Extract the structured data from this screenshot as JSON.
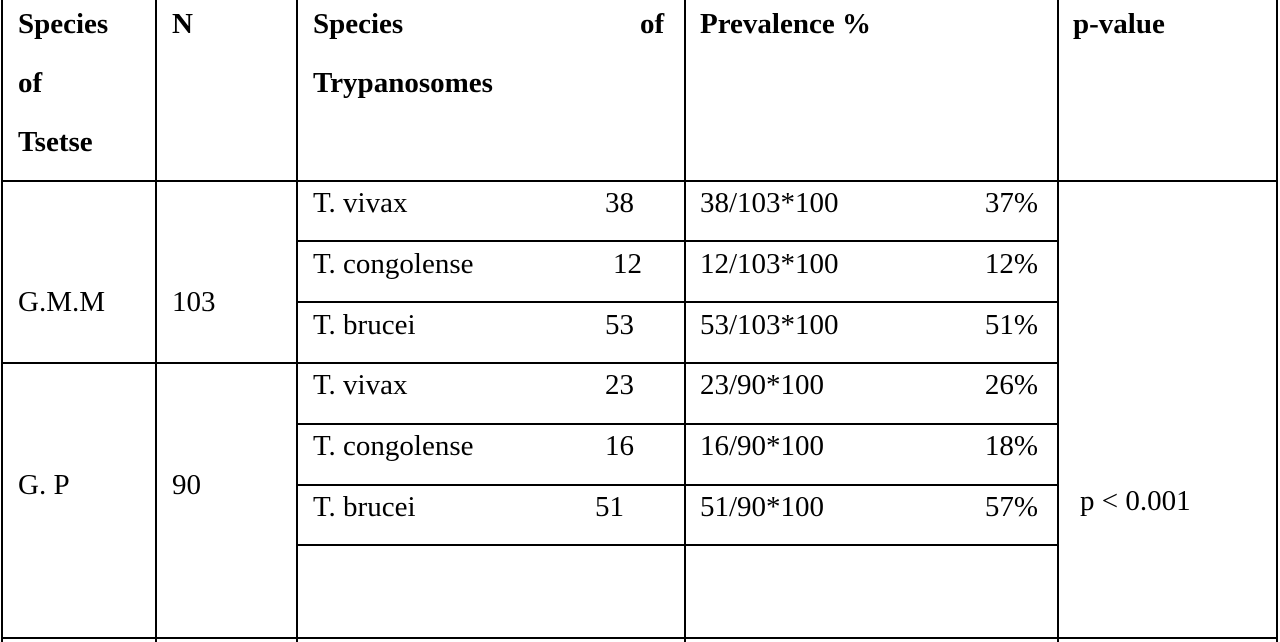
{
  "headers": {
    "tsetse": [
      "Species",
      "of",
      "Tsetse"
    ],
    "n": "N",
    "trypanosomes_word1": "Species",
    "trypanosomes_word2": "of",
    "trypanosomes_line2": "Trypanosomes",
    "prevalence": "Prevalence %",
    "pvalue": "p-value"
  },
  "groups": [
    {
      "tsetse": "G.M.M",
      "n": "103",
      "rows": [
        {
          "species": "T. vivax",
          "count": "38",
          "formula": "38/103*100",
          "percent": "37%"
        },
        {
          "species": "T. congolense",
          "count": "12",
          "formula": "12/103*100",
          "percent": "12%"
        },
        {
          "species": "T. brucei",
          "count": "53",
          "formula": "53/103*100",
          "percent": "51%"
        }
      ]
    },
    {
      "tsetse": "G. P",
      "n": "90",
      "rows": [
        {
          "species": "T. vivax",
          "count": "23",
          "formula": "23/90*100",
          "percent": "26%"
        },
        {
          "species": "T. congolense",
          "count": "16",
          "formula": "16/90*100",
          "percent": "18%"
        },
        {
          "species": "T. brucei",
          "count": "51",
          "formula": "51/90*100",
          "percent": "57%"
        }
      ]
    }
  ],
  "pvalue": "p < 0.001"
}
